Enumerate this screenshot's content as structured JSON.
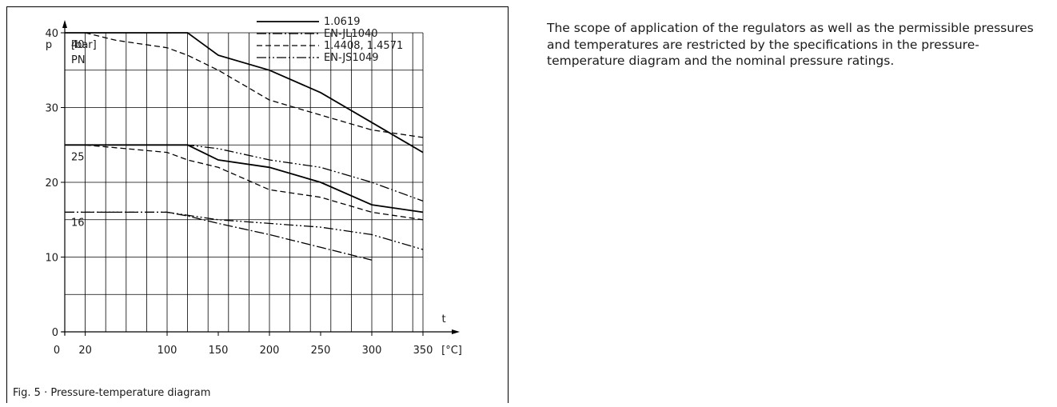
{
  "caption": "Fig. 5 · Pressure-temperature diagram",
  "description": "The scope of application of the regulators as well as the permissible pressures and temperatures are restricted by the specifications in the pressure-temperature diagram and the nominal pressure ratings.",
  "chart_data": {
    "type": "line",
    "title": "",
    "xlabel": "t",
    "x_unit": "[°C]",
    "ylabel": "p",
    "y_unit": "[bar]",
    "y_sublabel": "PN",
    "xlim": [
      0,
      350
    ],
    "ylim": [
      0,
      40
    ],
    "x_ticks": [
      0,
      20,
      100,
      150,
      200,
      250,
      300,
      350
    ],
    "y_ticks": [
      0,
      10,
      20,
      30,
      40
    ],
    "grid": true,
    "legend_position": "top",
    "pn_labels": [
      "40",
      "25",
      "16"
    ],
    "pn_values": [
      40,
      25,
      16
    ],
    "legend": [
      {
        "label": "1.0619",
        "style": "solid"
      },
      {
        "label": "EN-JL1040",
        "style": "dash-dot"
      },
      {
        "label": "1.4408, 1.4571",
        "style": "dashed"
      },
      {
        "label": "EN-JS1049",
        "style": "dash-dot-dot"
      }
    ],
    "series": [
      {
        "name": "1.0619",
        "style": "solid",
        "x": [
          0,
          120,
          150,
          200,
          250,
          300,
          350
        ],
        "y": [
          40,
          40,
          37,
          35,
          32,
          28,
          24
        ]
      },
      {
        "name": "1.4408, 1.4571",
        "style": "dashed",
        "x": [
          20,
          50,
          100,
          120,
          150,
          200,
          250,
          300,
          350
        ],
        "y": [
          40,
          39,
          38,
          37,
          35,
          31,
          29,
          27,
          26
        ]
      },
      {
        "name": "1.0619",
        "style": "solid",
        "x": [
          0,
          120,
          150,
          200,
          250,
          300,
          350
        ],
        "y": [
          25,
          25,
          23,
          22,
          20,
          17,
          16
        ]
      },
      {
        "name": "1.4408, 1.4571",
        "style": "dashed",
        "x": [
          20,
          100,
          120,
          150,
          200,
          250,
          300,
          350
        ],
        "y": [
          25,
          24,
          23,
          22,
          19,
          18,
          16,
          15
        ]
      },
      {
        "name": "EN-JS1049",
        "style": "dash-dot-dot",
        "x": [
          0,
          120,
          150,
          200,
          250,
          300,
          350
        ],
        "y": [
          25,
          25,
          24.5,
          23,
          22,
          20,
          17.5
        ]
      },
      {
        "name": "EN-JS1049",
        "style": "dash-dot-dot",
        "x": [
          0,
          100,
          150,
          200,
          250,
          300,
          350
        ],
        "y": [
          16,
          16,
          15,
          14.5,
          14,
          13,
          11
        ]
      },
      {
        "name": "EN-JL1040",
        "style": "dash-dot",
        "x": [
          0,
          100,
          120,
          150,
          200,
          250,
          300
        ],
        "y": [
          16,
          16,
          15.5,
          14.5,
          13,
          11.3,
          9.6
        ]
      }
    ]
  }
}
